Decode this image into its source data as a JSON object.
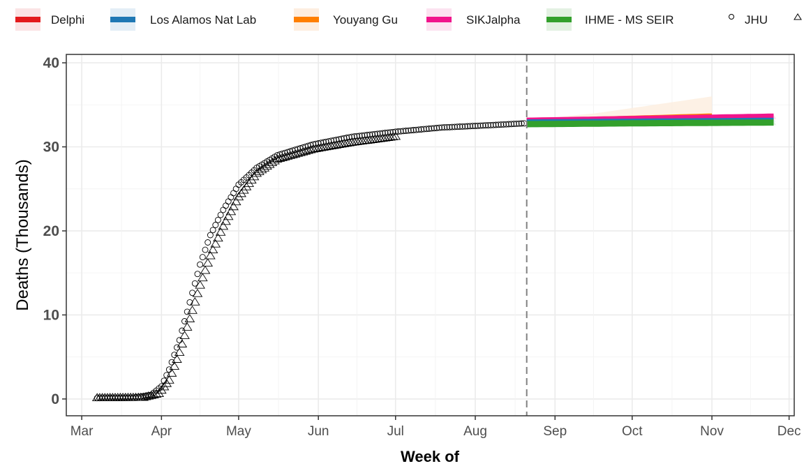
{
  "chart_data": {
    "type": "line",
    "xlabel": "Week of",
    "ylabel": "Deaths (Thousands)",
    "ylim": [
      -2,
      41
    ],
    "yticks": [
      0,
      10,
      20,
      30,
      40
    ],
    "x_ticks": [
      "Mar",
      "Apr",
      "May",
      "Jun",
      "Jul",
      "Aug",
      "Sep",
      "Oct",
      "Nov",
      "Dec"
    ],
    "x_tick_days": [
      0,
      31,
      61,
      92,
      122,
      153,
      184,
      214,
      245,
      275
    ],
    "xlim_days": [
      -6,
      277
    ],
    "grid": true,
    "forecast_date_day": 173,
    "legend_position": "top",
    "legend": [
      {
        "name": "Delphi",
        "kind": "band",
        "color": "#e31a1c",
        "fill": "#fbe3e4"
      },
      {
        "name": "Los Alamos Nat Lab",
        "kind": "band",
        "color": "#1f78b4",
        "fill": "#e3eef6"
      },
      {
        "name": "Youyang Gu",
        "kind": "band",
        "color": "#ff7f00",
        "fill": "#fdeee0"
      },
      {
        "name": "SIKJalpha",
        "kind": "band",
        "color": "#f1148c",
        "fill": "#fce2f0"
      },
      {
        "name": "IHME - MS SEIR",
        "kind": "band",
        "color": "#33a02c",
        "fill": "#e3f1e2"
      },
      {
        "name": "JHU",
        "kind": "circle"
      },
      {
        "name": "",
        "kind": "triangle"
      }
    ],
    "observed_series": [
      {
        "name": "JHU",
        "marker": "circle",
        "start_day": 6,
        "end_day": 172,
        "knots": [
          [
            6,
            0.1
          ],
          [
            20,
            0.15
          ],
          [
            27,
            0.5
          ],
          [
            31,
            1.5
          ],
          [
            34,
            3.5
          ],
          [
            38,
            7
          ],
          [
            42,
            11.5
          ],
          [
            46,
            16
          ],
          [
            50,
            19.5
          ],
          [
            55,
            22.5
          ],
          [
            61,
            25.5
          ],
          [
            68,
            27.5
          ],
          [
            76,
            29
          ],
          [
            90,
            30.3
          ],
          [
            105,
            31.2
          ],
          [
            122,
            31.8
          ],
          [
            140,
            32.3
          ],
          [
            160,
            32.6
          ],
          [
            172,
            32.8
          ]
        ]
      },
      {
        "name": "",
        "marker": "triangle",
        "start_day": 6,
        "end_day": 122,
        "knots": [
          [
            6,
            0.1
          ],
          [
            24,
            0.15
          ],
          [
            30,
            0.6
          ],
          [
            34,
            2.2
          ],
          [
            38,
            5.5
          ],
          [
            42,
            9.5
          ],
          [
            46,
            13.5
          ],
          [
            50,
            17
          ],
          [
            55,
            20.5
          ],
          [
            61,
            24
          ],
          [
            68,
            26.8
          ],
          [
            76,
            28.5
          ],
          [
            90,
            29.7
          ],
          [
            105,
            30.5
          ],
          [
            115,
            30.9
          ],
          [
            122,
            31.2
          ]
        ]
      }
    ],
    "forecast_series": [
      {
        "name": "Youyang Gu",
        "color": "#ff7f00",
        "fill": "#fdeee0",
        "start_day": 173,
        "end_day": 245,
        "median": [
          [
            173,
            33.0
          ],
          [
            245,
            33.6
          ]
        ],
        "lower": [
          [
            173,
            32.9
          ],
          [
            245,
            33.2
          ]
        ],
        "upper": [
          [
            173,
            33.2
          ],
          [
            200,
            34.0
          ],
          [
            245,
            36.0
          ]
        ]
      },
      {
        "name": "Delphi",
        "color": "#e31a1c",
        "fill": "#fbe3e4",
        "start_day": 173,
        "end_day": 270,
        "median": [
          [
            173,
            33.1
          ],
          [
            270,
            33.5
          ]
        ],
        "lower": [
          [
            173,
            33.0
          ],
          [
            270,
            33.3
          ]
        ],
        "upper": [
          [
            173,
            33.2
          ],
          [
            270,
            33.7
          ]
        ]
      },
      {
        "name": "SIKJalpha",
        "color": "#f1148c",
        "fill": "#fce2f0",
        "start_day": 173,
        "end_day": 270,
        "median": [
          [
            173,
            33.1
          ],
          [
            270,
            33.6
          ]
        ],
        "lower": [
          [
            173,
            33.0
          ],
          [
            270,
            33.4
          ]
        ],
        "upper": [
          [
            173,
            33.2
          ],
          [
            270,
            33.8
          ]
        ]
      },
      {
        "name": "Los Alamos Nat Lab",
        "color": "#1f78b4",
        "fill": "#e3eef6",
        "start_day": 173,
        "end_day": 270,
        "median": [
          [
            173,
            32.9
          ],
          [
            270,
            33.1
          ]
        ],
        "lower": [
          [
            173,
            32.8
          ],
          [
            270,
            33.0
          ]
        ],
        "upper": [
          [
            173,
            33.0
          ],
          [
            270,
            33.2
          ]
        ]
      },
      {
        "name": "IHME - MS SEIR",
        "color": "#33a02c",
        "fill": "#e3f1e2",
        "start_day": 173,
        "end_day": 270,
        "median": [
          [
            173,
            32.7
          ],
          [
            214,
            32.8
          ],
          [
            270,
            32.9
          ]
        ],
        "lower": [
          [
            173,
            32.5
          ],
          [
            270,
            32.6
          ]
        ],
        "upper": [
          [
            173,
            32.9
          ],
          [
            270,
            33.1
          ]
        ]
      }
    ]
  }
}
